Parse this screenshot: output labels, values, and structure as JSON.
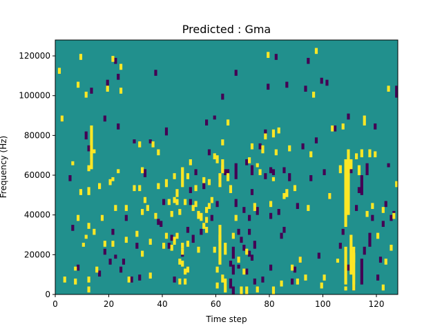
{
  "chart_data": {
    "type": "heatmap",
    "title": "Predicted : Gma",
    "xlabel": "Time step",
    "ylabel": "Frequency (Hz)",
    "xlim": [
      0,
      128
    ],
    "ylim": [
      0,
      128000
    ],
    "x_ticks": [
      0,
      20,
      40,
      60,
      80,
      100,
      120
    ],
    "y_ticks": [
      0,
      20000,
      40000,
      60000,
      80000,
      100000,
      120000
    ],
    "colorscale": "viridis",
    "levels": {
      "low": "#440154",
      "mid": "#21908d",
      "high": "#fde725"
    },
    "background_level": "mid",
    "grid": false,
    "legend": "none",
    "rows": 128,
    "row_height_hz": 1000,
    "high_cells": [
      [
        1,
        111,
        114
      ],
      [
        2,
        87,
        90
      ],
      [
        3,
        6,
        9
      ],
      [
        6,
        65,
        67
      ],
      [
        7,
        5,
        8
      ],
      [
        7,
        12,
        14
      ],
      [
        8,
        37,
        40
      ],
      [
        8,
        104,
        107
      ],
      [
        9,
        118,
        121
      ],
      [
        9,
        50,
        53
      ],
      [
        10,
        24,
        26
      ],
      [
        11,
        28,
        30
      ],
      [
        11,
        99,
        102
      ],
      [
        12,
        1,
        4
      ],
      [
        12,
        6,
        9
      ],
      [
        12,
        33,
        36
      ],
      [
        12,
        50,
        54
      ],
      [
        12,
        62,
        65
      ],
      [
        13,
        63,
        85
      ],
      [
        14,
        30,
        33
      ],
      [
        14,
        71,
        73
      ],
      [
        15,
        11,
        14
      ],
      [
        16,
        53,
        56
      ],
      [
        17,
        37,
        40
      ],
      [
        18,
        24,
        27
      ],
      [
        19,
        102,
        105
      ],
      [
        20,
        55,
        58
      ],
      [
        21,
        24,
        27
      ],
      [
        21,
        57,
        59
      ],
      [
        21,
        117,
        120
      ],
      [
        22,
        42,
        45
      ],
      [
        23,
        61,
        63
      ],
      [
        24,
        101,
        104
      ],
      [
        24,
        113,
        116
      ],
      [
        26,
        42,
        45
      ],
      [
        26,
        26,
        29
      ],
      [
        27,
        6,
        9
      ],
      [
        29,
        52,
        55
      ],
      [
        30,
        29,
        32
      ],
      [
        31,
        52,
        55
      ],
      [
        31,
        74,
        77
      ],
      [
        32,
        19,
        22
      ],
      [
        32,
        40,
        43
      ],
      [
        32,
        61,
        64
      ],
      [
        33,
        46,
        49
      ],
      [
        34,
        42,
        45
      ],
      [
        35,
        25,
        28
      ],
      [
        35,
        8,
        11
      ],
      [
        36,
        74,
        77
      ],
      [
        37,
        38,
        41
      ],
      [
        38,
        53,
        56
      ],
      [
        38,
        70,
        73
      ],
      [
        40,
        23,
        26
      ],
      [
        41,
        28,
        31
      ],
      [
        41,
        54,
        58
      ],
      [
        42,
        45,
        48
      ],
      [
        43,
        22,
        25
      ],
      [
        43,
        39,
        42
      ],
      [
        44,
        25,
        29
      ],
      [
        44,
        46,
        49
      ],
      [
        44,
        58,
        61
      ],
      [
        45,
        28,
        31
      ],
      [
        45,
        49,
        53
      ],
      [
        45,
        45,
        48
      ],
      [
        46,
        5,
        8
      ],
      [
        46,
        15,
        18
      ],
      [
        46,
        40,
        43
      ],
      [
        47,
        20,
        23
      ],
      [
        47,
        23,
        26
      ],
      [
        47,
        54,
        64
      ],
      [
        47,
        14,
        17
      ],
      [
        48,
        45,
        48
      ],
      [
        48,
        5,
        8
      ],
      [
        48,
        10,
        13
      ],
      [
        49,
        11,
        14
      ],
      [
        49,
        24,
        27
      ],
      [
        49,
        58,
        61
      ],
      [
        50,
        65,
        68
      ],
      [
        51,
        42,
        45
      ],
      [
        52,
        44,
        47
      ],
      [
        52,
        52,
        55
      ],
      [
        53,
        38,
        42
      ],
      [
        53,
        21,
        24
      ],
      [
        54,
        37,
        41
      ],
      [
        55,
        56,
        59
      ],
      [
        55,
        33,
        36
      ],
      [
        56,
        36,
        39
      ],
      [
        56,
        31,
        34
      ],
      [
        56,
        41,
        44
      ],
      [
        57,
        43,
        46
      ],
      [
        57,
        55,
        58
      ],
      [
        58,
        46,
        49
      ],
      [
        59,
        21,
        24
      ],
      [
        59,
        68,
        71
      ],
      [
        60,
        11,
        14
      ],
      [
        60,
        3,
        6
      ],
      [
        60,
        66,
        70
      ],
      [
        61,
        15,
        35
      ],
      [
        61,
        27,
        30
      ],
      [
        61,
        54,
        61
      ],
      [
        62,
        6,
        10
      ],
      [
        62,
        61,
        65
      ],
      [
        62,
        75,
        78
      ],
      [
        62,
        62,
        68
      ],
      [
        63,
        1,
        8
      ],
      [
        63,
        20,
        26
      ],
      [
        64,
        57,
        61
      ],
      [
        64,
        85,
        88
      ],
      [
        65,
        51,
        55
      ],
      [
        66,
        28,
        31
      ],
      [
        67,
        37,
        40
      ],
      [
        68,
        16,
        19
      ],
      [
        69,
        0,
        4
      ],
      [
        70,
        10,
        13
      ],
      [
        71,
        0,
        4
      ],
      [
        71,
        20,
        23
      ],
      [
        72,
        66,
        69
      ],
      [
        73,
        73,
        76
      ],
      [
        74,
        42,
        46
      ],
      [
        75,
        1,
        4
      ],
      [
        75,
        64,
        66
      ],
      [
        76,
        60,
        63
      ],
      [
        77,
        71,
        75
      ],
      [
        78,
        78,
        81
      ],
      [
        79,
        119,
        122
      ],
      [
        80,
        44,
        47
      ],
      [
        81,
        79,
        83
      ],
      [
        81,
        57,
        59
      ],
      [
        81,
        0,
        4
      ],
      [
        82,
        70,
        73
      ],
      [
        83,
        81,
        84
      ],
      [
        84,
        4,
        7
      ],
      [
        85,
        48,
        51
      ],
      [
        86,
        49,
        53
      ],
      [
        87,
        72,
        75
      ],
      [
        88,
        12,
        15
      ],
      [
        89,
        52,
        55
      ],
      [
        90,
        5,
        8
      ],
      [
        91,
        16,
        19
      ],
      [
        93,
        7,
        10
      ],
      [
        94,
        42,
        45
      ],
      [
        95,
        69,
        72
      ],
      [
        96,
        99,
        102
      ],
      [
        97,
        121,
        124
      ],
      [
        99,
        3,
        6
      ],
      [
        100,
        7,
        10
      ],
      [
        102,
        48,
        51
      ],
      [
        103,
        82,
        85
      ],
      [
        105,
        16,
        18
      ],
      [
        106,
        61,
        65
      ],
      [
        107,
        83,
        86
      ],
      [
        108,
        2,
        4
      ],
      [
        108,
        5,
        24
      ],
      [
        108,
        34,
        68
      ],
      [
        109,
        40,
        73
      ],
      [
        110,
        10,
        30
      ],
      [
        110,
        63,
        68
      ],
      [
        111,
        2,
        24
      ],
      [
        111,
        16,
        21
      ],
      [
        112,
        68,
        71
      ],
      [
        113,
        60,
        65
      ],
      [
        114,
        69,
        73
      ],
      [
        115,
        85,
        90
      ],
      [
        116,
        39,
        42
      ],
      [
        117,
        69,
        73
      ],
      [
        118,
        43,
        46
      ],
      [
        119,
        69,
        72
      ],
      [
        120,
        28,
        31
      ],
      [
        122,
        2,
        5
      ],
      [
        122,
        41,
        44
      ],
      [
        123,
        15,
        18
      ],
      [
        124,
        102,
        105
      ],
      [
        125,
        22,
        25
      ],
      [
        126,
        38,
        41
      ],
      [
        127,
        54,
        57
      ]
    ],
    "low_cells": [
      [
        2,
        87,
        90
      ],
      [
        5,
        57,
        60
      ],
      [
        6,
        32,
        35
      ],
      [
        8,
        12,
        15
      ],
      [
        11,
        78,
        82
      ],
      [
        12,
        72,
        75
      ],
      [
        13,
        65,
        68
      ],
      [
        13,
        101,
        104
      ],
      [
        16,
        9,
        12
      ],
      [
        17,
        37,
        40
      ],
      [
        18,
        20,
        23
      ],
      [
        18,
        87,
        90
      ],
      [
        19,
        105,
        108
      ],
      [
        20,
        15,
        18
      ],
      [
        21,
        30,
        33
      ],
      [
        22,
        116,
        119
      ],
      [
        22,
        18,
        20
      ],
      [
        23,
        83,
        86
      ],
      [
        23,
        108,
        111
      ],
      [
        24,
        11,
        14
      ],
      [
        25,
        15,
        18
      ],
      [
        26,
        37,
        40
      ],
      [
        28,
        6,
        9
      ],
      [
        29,
        76,
        78
      ],
      [
        30,
        23,
        26
      ],
      [
        31,
        7,
        10
      ],
      [
        33,
        59,
        63
      ],
      [
        35,
        76,
        78
      ],
      [
        37,
        110,
        113
      ],
      [
        38,
        35,
        38
      ],
      [
        39,
        34,
        37
      ],
      [
        40,
        45,
        48
      ],
      [
        41,
        80,
        84
      ],
      [
        42,
        23,
        26
      ],
      [
        43,
        27,
        30
      ],
      [
        44,
        6,
        9
      ],
      [
        46,
        5,
        7
      ],
      [
        47,
        19,
        22
      ],
      [
        49,
        11,
        14
      ],
      [
        49,
        31,
        34
      ],
      [
        50,
        45,
        48
      ],
      [
        50,
        51,
        54
      ],
      [
        51,
        26,
        30
      ],
      [
        52,
        60,
        63
      ],
      [
        54,
        30,
        33
      ],
      [
        55,
        53,
        56
      ],
      [
        56,
        36,
        39
      ],
      [
        56,
        85,
        88
      ],
      [
        57,
        70,
        73
      ],
      [
        58,
        37,
        40
      ],
      [
        59,
        88,
        90
      ],
      [
        60,
        44,
        47
      ],
      [
        61,
        56,
        58
      ],
      [
        62,
        98,
        101
      ],
      [
        63,
        60,
        63
      ],
      [
        64,
        60,
        63
      ],
      [
        65,
        3,
        8
      ],
      [
        65,
        14,
        17
      ],
      [
        66,
        0,
        4
      ],
      [
        66,
        10,
        15
      ],
      [
        66,
        18,
        24
      ],
      [
        67,
        44,
        48
      ],
      [
        67,
        58,
        66
      ],
      [
        67,
        110,
        113
      ],
      [
        68,
        30,
        33
      ],
      [
        68,
        13,
        15
      ],
      [
        69,
        26,
        29
      ],
      [
        70,
        22,
        25
      ],
      [
        70,
        41,
        44
      ],
      [
        71,
        10,
        13
      ],
      [
        71,
        65,
        68
      ],
      [
        72,
        19,
        22
      ],
      [
        72,
        30,
        33
      ],
      [
        72,
        37,
        40
      ],
      [
        73,
        17,
        20
      ],
      [
        73,
        50,
        53
      ],
      [
        73,
        60,
        65
      ],
      [
        74,
        5,
        8
      ],
      [
        74,
        23,
        27
      ],
      [
        75,
        40,
        44
      ],
      [
        76,
        73,
        76
      ],
      [
        77,
        6,
        9
      ],
      [
        78,
        58,
        61
      ],
      [
        78,
        80,
        83
      ],
      [
        79,
        103,
        106
      ],
      [
        80,
        12,
        15
      ],
      [
        80,
        38,
        41
      ],
      [
        80,
        61,
        64
      ],
      [
        81,
        60,
        63
      ],
      [
        82,
        118,
        121
      ],
      [
        83,
        40,
        43
      ],
      [
        84,
        28,
        31
      ],
      [
        85,
        31,
        34
      ],
      [
        85,
        61,
        64
      ],
      [
        86,
        104,
        107
      ],
      [
        87,
        57,
        61
      ],
      [
        88,
        5,
        8
      ],
      [
        89,
        11,
        14
      ],
      [
        90,
        43,
        46
      ],
      [
        91,
        16,
        19
      ],
      [
        92,
        73,
        76
      ],
      [
        93,
        102,
        105
      ],
      [
        94,
        116,
        119
      ],
      [
        95,
        57,
        60
      ],
      [
        97,
        76,
        79
      ],
      [
        98,
        18,
        21
      ],
      [
        99,
        106,
        109
      ],
      [
        100,
        60,
        63
      ],
      [
        101,
        105,
        108
      ],
      [
        102,
        48,
        51
      ],
      [
        104,
        82,
        85
      ],
      [
        106,
        23,
        26
      ],
      [
        107,
        30,
        33
      ],
      [
        108,
        47,
        50
      ],
      [
        109,
        12,
        15
      ],
      [
        109,
        88,
        91
      ],
      [
        110,
        61,
        64
      ],
      [
        111,
        2,
        5
      ],
      [
        111,
        20,
        23
      ],
      [
        112,
        42,
        45
      ],
      [
        113,
        51,
        54
      ],
      [
        114,
        5,
        18
      ],
      [
        114,
        50,
        60
      ],
      [
        115,
        20,
        24
      ],
      [
        116,
        60,
        66
      ],
      [
        117,
        24,
        31
      ],
      [
        118,
        37,
        40
      ],
      [
        119,
        83,
        86
      ],
      [
        120,
        7,
        10
      ],
      [
        121,
        16,
        19
      ],
      [
        122,
        34,
        37
      ],
      [
        123,
        44,
        47
      ],
      [
        124,
        64,
        66
      ],
      [
        125,
        37,
        40
      ],
      [
        126,
        38,
        42
      ],
      [
        127,
        99,
        102
      ],
      [
        127,
        102,
        105
      ]
    ]
  }
}
